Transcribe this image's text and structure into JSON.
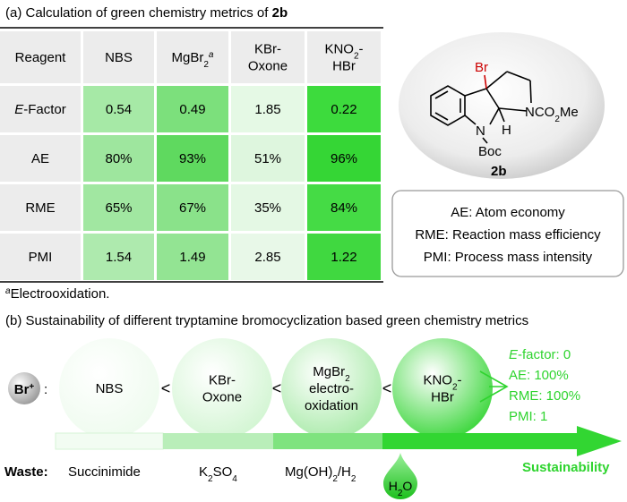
{
  "part_a": {
    "title": [
      {
        "t": "(a) Calculation of green chemistry metrics of "
      },
      {
        "t": "2b",
        "s": "b"
      }
    ]
  },
  "table": {
    "header": [
      [
        [
          {
            "t": "Reagent"
          }
        ]
      ],
      [
        [
          {
            "t": "NBS"
          }
        ]
      ],
      [
        [
          {
            "t": "MgBr"
          },
          {
            "t": "2",
            "s": "sub"
          },
          {
            "t": "a",
            "s": "sup i"
          }
        ]
      ],
      [
        [
          {
            "t": "KBr-"
          }
        ],
        [
          {
            "t": "Oxone"
          }
        ]
      ],
      [
        [
          {
            "t": "KNO"
          },
          {
            "t": "2",
            "s": "sub"
          },
          {
            "t": "-"
          }
        ],
        [
          {
            "t": "HBr"
          }
        ]
      ]
    ],
    "rows": [
      {
        "label": [
          {
            "t": "E",
            "s": "i"
          },
          {
            "t": "-Factor"
          }
        ],
        "values": [
          "0.54",
          "0.49",
          "1.85",
          "0.22"
        ],
        "colors": [
          "#a6e9a6",
          "#7ce07c",
          "#e5f9e5",
          "#3ddb3d"
        ]
      },
      {
        "label": [
          {
            "t": "AE"
          }
        ],
        "values": [
          "80%",
          "93%",
          "51%",
          "96%"
        ],
        "colors": [
          "#9ee69e",
          "#5fd95f",
          "#def6de",
          "#35d635"
        ]
      },
      {
        "label": [
          {
            "t": "RME"
          }
        ],
        "values": [
          "65%",
          "67%",
          "35%",
          "84%"
        ],
        "colors": [
          "#a1e7a1",
          "#8ae28a",
          "#e4f8e4",
          "#45db45"
        ]
      },
      {
        "label": [
          {
            "t": "PMI"
          }
        ],
        "values": [
          "1.54",
          "1.49",
          "2.85",
          "1.22"
        ],
        "colors": [
          "#aeeaae",
          "#93e493",
          "#e8f8e8",
          "#40d840"
        ]
      }
    ]
  },
  "molecule": {
    "br": [
      {
        "t": "Br"
      }
    ],
    "ring_n": [
      {
        "t": "NCO"
      },
      {
        "t": "2",
        "s": "sub"
      },
      {
        "t": "Me"
      }
    ],
    "n": [
      {
        "t": "N"
      }
    ],
    "h": [
      {
        "t": "H"
      }
    ],
    "boc": [
      {
        "t": "Boc"
      }
    ],
    "id": [
      {
        "t": "2b",
        "s": "b"
      }
    ]
  },
  "legend": [
    [
      {
        "t": "AE: Atom economy"
      }
    ],
    [
      {
        "t": "RME: Reaction mass efficiency"
      }
    ],
    [
      {
        "t": "PMI: Process mass intensity"
      }
    ]
  ],
  "footnote": [
    {
      "t": "a",
      "s": "sup i"
    },
    {
      "t": "Electrooxidation."
    }
  ],
  "part_b": {
    "title": [
      {
        "t": "(b) Sustainability of different tryptamine bromocyclization based green chemistry metrics"
      }
    ],
    "reagent": [
      {
        "t": "Br",
        "s": "b"
      },
      {
        "t": "+",
        "s": "sup b"
      }
    ],
    "colon": [
      {
        "t": ":"
      }
    ],
    "circles": [
      {
        "lines": [
          [
            {
              "t": "NBS"
            }
          ]
        ],
        "color": "#eefbee"
      },
      {
        "lines": [
          [
            {
              "t": "KBr-"
            }
          ],
          [
            {
              "t": "Oxone"
            }
          ]
        ],
        "color": "#d2f5d2"
      },
      {
        "lines": [
          [
            {
              "t": "MgBr"
            },
            {
              "t": "2",
              "s": "sub"
            }
          ],
          [
            {
              "t": "electro-"
            }
          ],
          [
            {
              "t": "oxidation"
            }
          ]
        ],
        "color": "#a8eaa8"
      },
      {
        "lines": [
          [
            {
              "t": "KNO"
            },
            {
              "t": "2",
              "s": "sub"
            },
            {
              "t": "-"
            }
          ],
          [
            {
              "t": "HBr"
            }
          ]
        ],
        "color": "#3ad63a"
      }
    ],
    "comparators": [
      [
        {
          "t": "<"
        }
      ],
      [
        {
          "t": "<"
        }
      ],
      [
        {
          "t": "<"
        }
      ]
    ],
    "results": [
      [
        {
          "t": "E",
          "s": "i"
        },
        {
          "t": "-factor: 0"
        }
      ],
      [
        {
          "t": "AE: 100%"
        }
      ],
      [
        {
          "t": "RME: 100%"
        }
      ],
      [
        {
          "t": "PMI: 1"
        }
      ]
    ],
    "axis_label": [
      {
        "t": "Sustainability",
        "s": "b"
      }
    ],
    "waste_label": [
      {
        "t": "Waste:",
        "s": "b"
      }
    ],
    "waste": [
      [
        {
          "t": "Succinimide"
        }
      ],
      [
        {
          "t": "K"
        },
        {
          "t": "2",
          "s": "sub"
        },
        {
          "t": "SO"
        },
        {
          "t": "4",
          "s": "sub"
        }
      ],
      [
        {
          "t": "Mg(OH)"
        },
        {
          "t": "2",
          "s": "sub"
        },
        {
          "t": "/H"
        },
        {
          "t": "2",
          "s": "sub"
        }
      ],
      [
        {
          "t": "H"
        },
        {
          "t": "2",
          "s": "sub"
        },
        {
          "t": "O"
        }
      ]
    ]
  }
}
